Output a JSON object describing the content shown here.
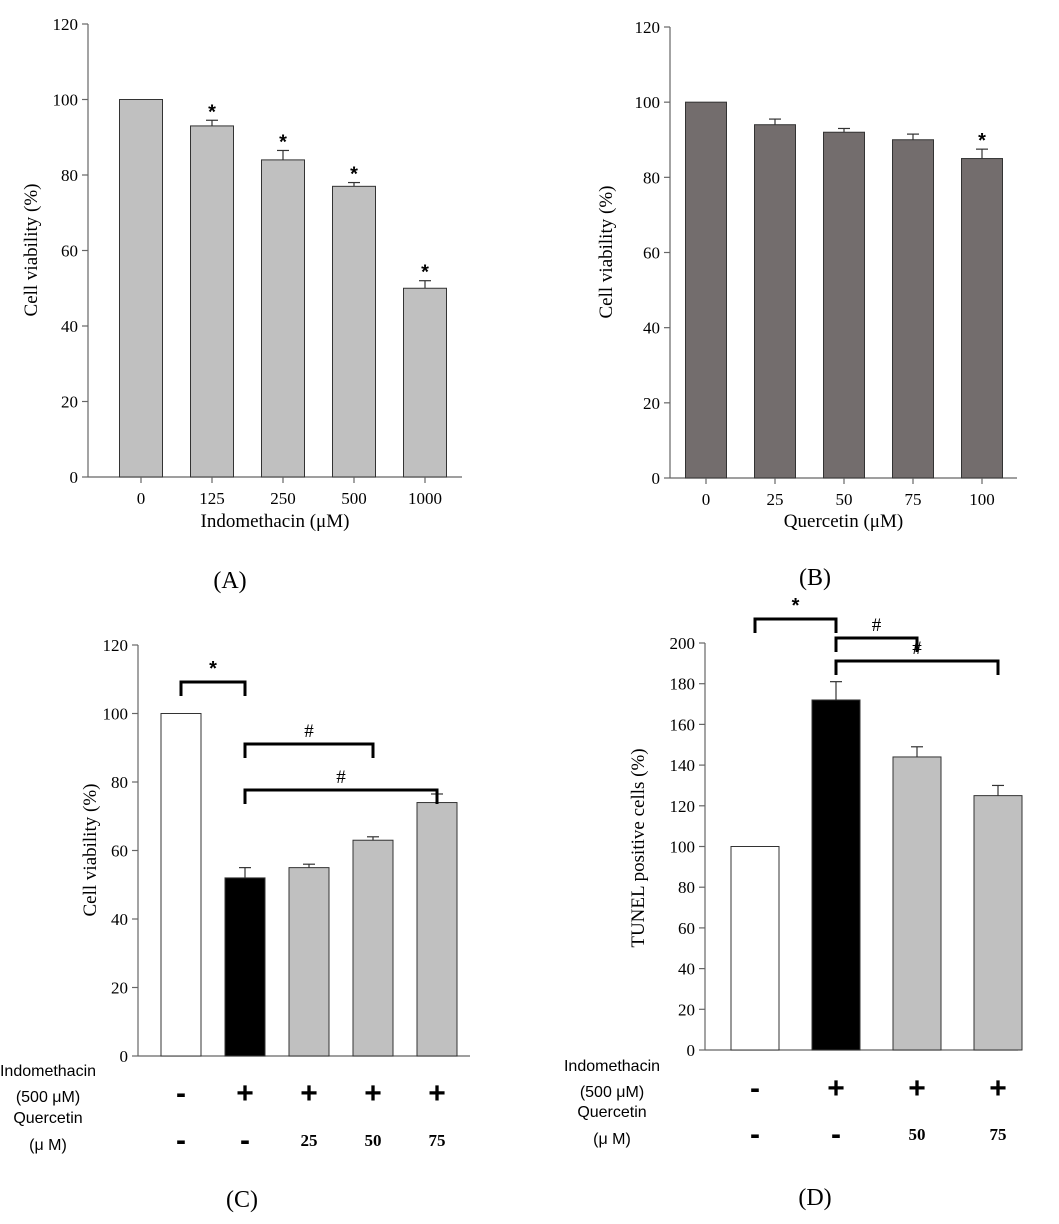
{
  "colors": {
    "light_gray": "#c0c0c0",
    "dark_gray": "#736d6d",
    "black": "#000000",
    "white": "#ffffff"
  },
  "chart_data": [
    {
      "panel": "(A)",
      "type": "bar",
      "ylabel": "Cell viability (%)",
      "xlabel": "Indomethacin (μM)",
      "categories": [
        "0",
        "125",
        "250",
        "500",
        "1000"
      ],
      "values": [
        100,
        93,
        84,
        77,
        50
      ],
      "errors": [
        0,
        1.5,
        2.5,
        1,
        2
      ],
      "significance": [
        "",
        "*",
        "*",
        "*",
        "*"
      ],
      "bar_colors": [
        "#c0c0c0",
        "#c0c0c0",
        "#c0c0c0",
        "#c0c0c0",
        "#c0c0c0"
      ],
      "ylim": [
        0,
        120
      ],
      "yticks": [
        0,
        20,
        40,
        60,
        80,
        100,
        120
      ]
    },
    {
      "panel": "(B)",
      "type": "bar",
      "ylabel": "Cell viability (%)",
      "xlabel": "Quercetin (μM)",
      "categories": [
        "0",
        "25",
        "50",
        "75",
        "100"
      ],
      "values": [
        100,
        94,
        92,
        90,
        85
      ],
      "errors": [
        0,
        1.5,
        1,
        1.5,
        2.5
      ],
      "significance": [
        "",
        "",
        "",
        "",
        "*"
      ],
      "bar_colors": [
        "#736d6d",
        "#736d6d",
        "#736d6d",
        "#736d6d",
        "#736d6d"
      ],
      "ylim": [
        0,
        120
      ],
      "yticks": [
        0,
        20,
        40,
        60,
        80,
        100,
        120
      ]
    },
    {
      "panel": "(C)",
      "type": "bar",
      "ylabel": "Cell viability (%)",
      "values": [
        100,
        52,
        55,
        63,
        74
      ],
      "errors": [
        0,
        3,
        1,
        1,
        2.5
      ],
      "bar_colors": [
        "#ffffff",
        "#000000",
        "#c0c0c0",
        "#c0c0c0",
        "#c0c0c0"
      ],
      "ylim": [
        0,
        120
      ],
      "yticks": [
        0,
        20,
        40,
        60,
        80,
        100,
        120
      ],
      "row1_label": [
        "Indomethacin",
        "(500 μM)"
      ],
      "row1": [
        "-",
        "+",
        "+",
        "+",
        "+"
      ],
      "row2_label": [
        "Quercetin",
        "(μ M)"
      ],
      "row2": [
        "-",
        "-",
        "25",
        "50",
        "75"
      ],
      "brackets": [
        {
          "from": 0,
          "to": 1,
          "symbol": "*"
        },
        {
          "from": 1,
          "to": 3,
          "symbol": "#"
        },
        {
          "from": 1,
          "to": 4,
          "symbol": "#"
        }
      ]
    },
    {
      "panel": "(D)",
      "type": "bar",
      "ylabel": "TUNEL positive cells (%)",
      "values": [
        100,
        172,
        144,
        125
      ],
      "errors": [
        0,
        9,
        5,
        5
      ],
      "bar_colors": [
        "#ffffff",
        "#000000",
        "#c0c0c0",
        "#c0c0c0"
      ],
      "ylim": [
        0,
        200
      ],
      "yticks": [
        0,
        20,
        40,
        60,
        80,
        100,
        120,
        140,
        160,
        180,
        200
      ],
      "row1_label": [
        "Indomethacin",
        "(500 μM)"
      ],
      "row1": [
        "-",
        "+",
        "+",
        "+"
      ],
      "row2_label": [
        "Quercetin",
        "(μ M)"
      ],
      "row2": [
        "-",
        "-",
        "50",
        "75"
      ],
      "brackets": [
        {
          "from": 0,
          "to": 1,
          "symbol": "*"
        },
        {
          "from": 1,
          "to": 2,
          "symbol": "#"
        },
        {
          "from": 1,
          "to": 3,
          "symbol": "#"
        }
      ]
    }
  ]
}
